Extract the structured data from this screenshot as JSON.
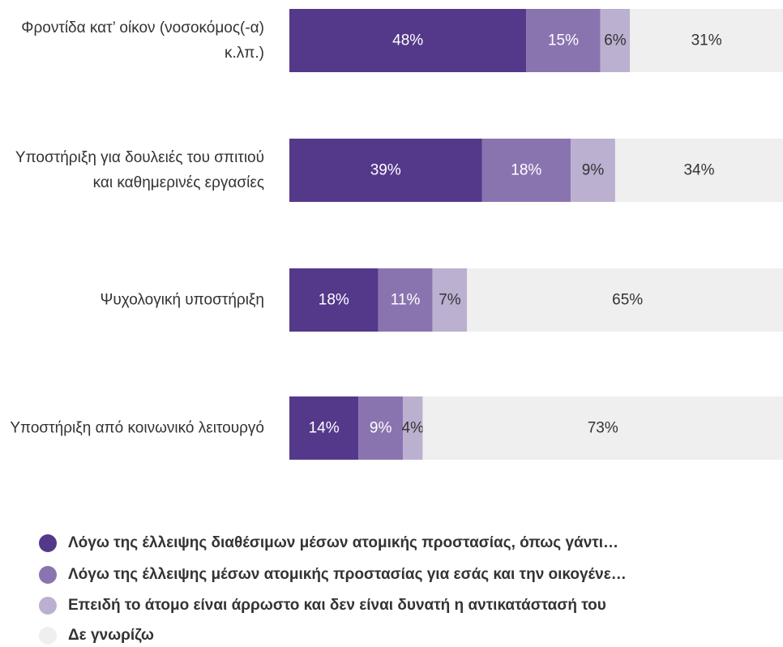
{
  "chart_data": {
    "type": "stacked-bar-horizontal",
    "categories": [
      "Φροντίδα κατ’ οίκον (νοσοκόμος(-α) κ.λπ.)",
      "Υποστήριξη για δουλειές του σπιτιού και καθημερινές εργασίες",
      "Ψυχολογική υποστήριξη",
      "Υποστήριξη από κοινωνικό λειτουργό"
    ],
    "xlim": [
      0,
      100
    ],
    "series": [
      {
        "name": "Λόγω της έλλειψης διαθέσιμων μέσων ατομικής προστασίας, όπως γάντι…",
        "color": "#54398a",
        "values": [
          48,
          39,
          18,
          14
        ],
        "value_labels": [
          "48%",
          "39%",
          "18%",
          "14%"
        ]
      },
      {
        "name": "Λόγω της έλλειψης μέσων ατομικής προστασίας για εσάς και την οικογένε…",
        "color": "#8a74b0",
        "values": [
          15,
          18,
          11,
          9
        ],
        "value_labels": [
          "15%",
          "18%",
          "11%",
          "9%"
        ]
      },
      {
        "name": "Επειδή το άτομο είναι άρρωστο και δεν είναι δυνατή η αντικατάστασή του",
        "color": "#bcb0d1",
        "values": [
          6,
          9,
          7,
          4
        ],
        "value_labels": [
          "6%",
          "9%",
          "7%",
          "4%"
        ]
      },
      {
        "name": "Δε γνωρίζω",
        "color": "#efefef",
        "values": [
          31,
          34,
          65,
          73
        ],
        "value_labels": [
          "31%",
          "34%",
          "65%",
          "73%"
        ]
      }
    ]
  }
}
